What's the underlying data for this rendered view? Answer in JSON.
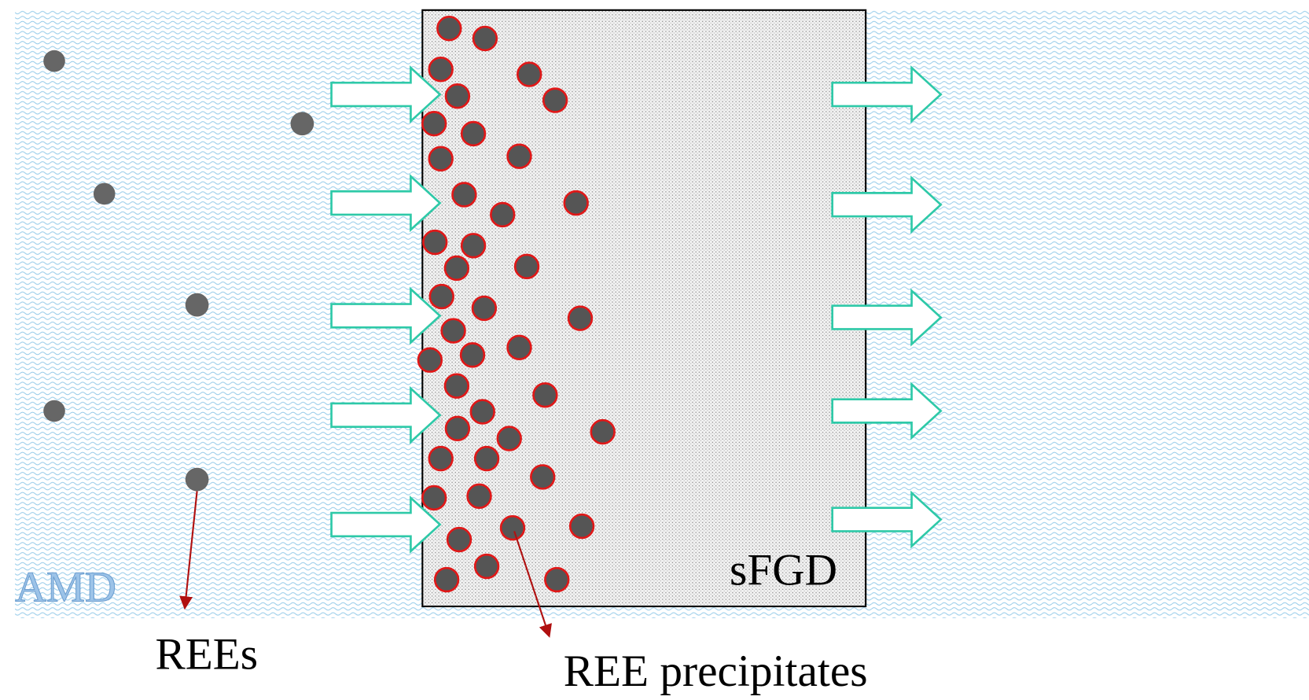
{
  "labels": {
    "fluid": "AMD",
    "filter": "sFGD",
    "free_ions": "REEs",
    "precipitates": "REE precipitates"
  }
}
